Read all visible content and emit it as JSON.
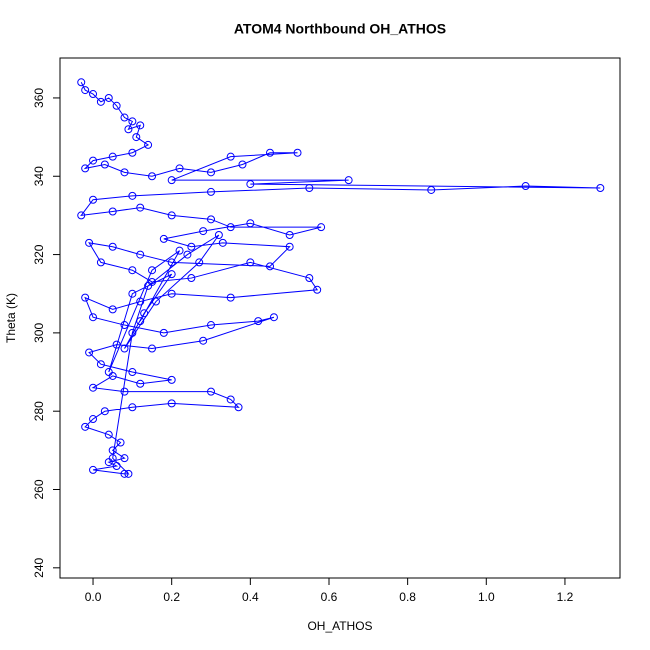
{
  "chart_data": {
    "type": "scatter",
    "title": "ATOM4 Northbound OH_ATHOS",
    "x_label": "OH_ATHOS",
    "y_label": "Theta (K)",
    "color": "#0000ff",
    "connect": true,
    "x": [
      -0.03,
      -0.02,
      0.0,
      0.02,
      0.04,
      0.06,
      0.08,
      0.1,
      0.09,
      0.12,
      0.11,
      0.14,
      0.1,
      0.05,
      0.0,
      -0.02,
      0.03,
      0.08,
      0.15,
      0.22,
      0.3,
      0.38,
      0.45,
      0.52,
      0.35,
      0.2,
      0.65,
      0.4,
      1.29,
      1.1,
      0.86,
      0.55,
      0.3,
      0.1,
      0.0,
      -0.03,
      0.05,
      0.12,
      0.2,
      0.3,
      0.35,
      0.58,
      0.5,
      0.4,
      0.28,
      0.18,
      0.25,
      0.33,
      0.5,
      0.45,
      0.2,
      0.12,
      0.05,
      -0.01,
      0.02,
      0.1,
      0.15,
      0.25,
      0.4,
      0.55,
      0.57,
      0.35,
      0.2,
      0.12,
      0.05,
      -0.02,
      0.0,
      0.08,
      0.18,
      0.3,
      0.42,
      0.46,
      0.28,
      0.15,
      0.06,
      -0.01,
      0.02,
      0.1,
      0.2,
      0.12,
      0.05,
      0.0,
      0.08,
      0.3,
      0.35,
      0.37,
      0.2,
      0.1,
      0.03,
      0.0,
      -0.02,
      0.04,
      0.07,
      0.05,
      0.08,
      0.04,
      0.06,
      0.0,
      0.08,
      0.09,
      0.05,
      0.1,
      0.14,
      0.24,
      0.32,
      0.27,
      0.16,
      0.08,
      0.13,
      0.2,
      0.1,
      0.04,
      0.15,
      0.22,
      0.12
    ],
    "y": [
      364,
      362,
      361,
      359,
      360,
      358,
      355,
      354,
      352,
      353,
      350,
      348,
      346,
      345,
      344,
      342,
      343,
      341,
      340,
      342,
      341,
      343,
      346,
      346,
      345,
      339,
      339,
      338,
      337,
      337.5,
      336.5,
      337,
      336,
      335,
      334,
      330,
      331,
      332,
      330,
      329,
      327,
      327,
      325,
      328,
      326,
      324,
      322,
      323,
      322,
      317,
      318,
      320,
      322,
      323,
      318,
      316,
      313,
      314,
      318,
      314,
      311,
      309,
      310,
      308,
      306,
      309,
      304,
      302,
      300,
      302,
      303,
      304,
      298,
      296,
      297,
      295,
      292,
      290,
      288,
      287,
      289,
      286,
      285,
      285,
      283,
      281,
      282,
      281,
      280,
      278,
      276,
      274,
      272,
      270,
      268,
      267,
      266,
      265,
      264,
      264,
      268,
      300,
      312,
      320,
      325,
      318,
      308,
      296,
      305,
      315,
      310,
      290,
      316,
      321,
      303
    ],
    "xlim": [
      -0.084,
      1.34
    ],
    "ylim": [
      237.4,
      370.2
    ],
    "xticks": [
      {
        "value": 0,
        "label": "0.0"
      },
      0.2,
      0.4,
      0.6,
      0.8,
      {
        "value": 1,
        "label": "1.0"
      },
      1.2
    ],
    "yticks": [
      240,
      260,
      280,
      300,
      320,
      340,
      360
    ]
  }
}
